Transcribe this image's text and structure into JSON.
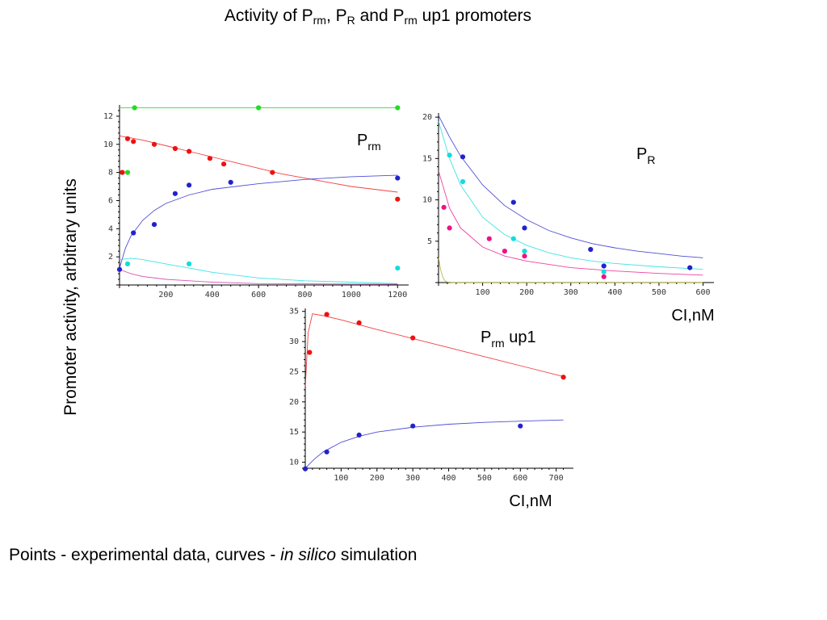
{
  "title": {
    "pre": "Activity of P",
    "sub1": "rm",
    "mid1": ", P",
    "sub2": "R",
    "mid2": " and P",
    "sub3": "rm",
    "post": " up1 promoters"
  },
  "y_caption": "Promoter activity, arbitrary units",
  "footer": {
    "part1": "Points -  experimental data, curves - ",
    "italic": "in silico",
    "part2": " simulation"
  },
  "x_unit_label": "CI,nM",
  "chart_data": [
    {
      "type": "scatter",
      "panel": "prm",
      "label": {
        "main": "P",
        "sub": "rm",
        "suffix": ""
      },
      "xlim": [
        0,
        1220
      ],
      "ylim": [
        0,
        12.8
      ],
      "xticks": [
        200,
        400,
        600,
        800,
        1000,
        1200
      ],
      "yticks": [
        2,
        4,
        6,
        8,
        10,
        12
      ],
      "show_xunit": false,
      "series": [
        {
          "color": "#22dd22",
          "points": [
            [
              12,
              8.0
            ],
            [
              35,
              8.0
            ],
            [
              65,
              12.6
            ],
            [
              600,
              12.6
            ],
            [
              1200,
              12.6
            ]
          ],
          "curve": [
            [
              0,
              12.6
            ],
            [
              200,
              12.6
            ],
            [
              400,
              12.6
            ],
            [
              600,
              12.6
            ],
            [
              800,
              12.6
            ],
            [
              1000,
              12.6
            ],
            [
              1200,
              12.6
            ]
          ]
        },
        {
          "color": "#ee1111",
          "points": [
            [
              12,
              8.0
            ],
            [
              35,
              10.4
            ],
            [
              60,
              10.2
            ],
            [
              150,
              10.0
            ],
            [
              240,
              9.7
            ],
            [
              300,
              9.5
            ],
            [
              390,
              9.0
            ],
            [
              450,
              8.6
            ],
            [
              660,
              8.0
            ],
            [
              1200,
              6.1
            ]
          ],
          "curve": [
            [
              0,
              10.6
            ],
            [
              100,
              10.3
            ],
            [
              200,
              9.9
            ],
            [
              300,
              9.5
            ],
            [
              400,
              9.1
            ],
            [
              500,
              8.7
            ],
            [
              600,
              8.3
            ],
            [
              700,
              7.9
            ],
            [
              800,
              7.6
            ],
            [
              900,
              7.3
            ],
            [
              1000,
              7.0
            ],
            [
              1100,
              6.8
            ],
            [
              1200,
              6.6
            ]
          ]
        },
        {
          "color": "#2222cc",
          "points": [
            [
              0,
              1.1
            ],
            [
              60,
              3.7
            ],
            [
              150,
              4.3
            ],
            [
              240,
              6.5
            ],
            [
              300,
              7.1
            ],
            [
              480,
              7.3
            ],
            [
              1200,
              7.6
            ]
          ],
          "curve": [
            [
              0,
              1.2
            ],
            [
              25,
              2.6
            ],
            [
              50,
              3.5
            ],
            [
              100,
              4.6
            ],
            [
              150,
              5.3
            ],
            [
              200,
              5.8
            ],
            [
              300,
              6.4
            ],
            [
              400,
              6.8
            ],
            [
              600,
              7.2
            ],
            [
              800,
              7.5
            ],
            [
              1000,
              7.7
            ],
            [
              1200,
              7.8
            ]
          ]
        },
        {
          "color": "#11dddd",
          "points": [
            [
              35,
              1.5
            ],
            [
              300,
              1.5
            ],
            [
              1200,
              1.2
            ]
          ],
          "curve": [
            [
              0,
              1.8
            ],
            [
              50,
              1.9
            ],
            [
              100,
              1.8
            ],
            [
              200,
              1.5
            ],
            [
              300,
              1.2
            ],
            [
              400,
              0.9
            ],
            [
              500,
              0.7
            ],
            [
              600,
              0.5
            ],
            [
              800,
              0.3
            ],
            [
              1000,
              0.2
            ],
            [
              1200,
              0.1
            ]
          ]
        },
        {
          "color": "#cc33aa",
          "points": [],
          "curve": [
            [
              0,
              1.1
            ],
            [
              50,
              0.8
            ],
            [
              100,
              0.6
            ],
            [
              200,
              0.4
            ],
            [
              400,
              0.2
            ],
            [
              600,
              0.1
            ],
            [
              1200,
              0.05
            ]
          ]
        }
      ]
    },
    {
      "type": "scatter",
      "panel": "pr",
      "label": {
        "main": "P",
        "sub": "R",
        "suffix": ""
      },
      "xlim": [
        0,
        610
      ],
      "ylim": [
        0,
        20.5
      ],
      "xticks": [
        100,
        200,
        300,
        400,
        500,
        600
      ],
      "yticks": [
        5,
        10,
        15,
        20
      ],
      "show_xunit": true,
      "series": [
        {
          "color": "#2222cc",
          "points": [
            [
              55,
              15.2
            ],
            [
              170,
              9.7
            ],
            [
              195,
              6.6
            ],
            [
              345,
              4.0
            ],
            [
              375,
              2.0
            ],
            [
              570,
              1.8
            ]
          ],
          "curve": [
            [
              0,
              20.2
            ],
            [
              25,
              17.6
            ],
            [
              50,
              15.3
            ],
            [
              100,
              11.8
            ],
            [
              150,
              9.3
            ],
            [
              200,
              7.6
            ],
            [
              250,
              6.3
            ],
            [
              300,
              5.4
            ],
            [
              350,
              4.7
            ],
            [
              400,
              4.2
            ],
            [
              450,
              3.8
            ],
            [
              500,
              3.5
            ],
            [
              550,
              3.2
            ],
            [
              600,
              3.0
            ]
          ]
        },
        {
          "color": "#11dddd",
          "points": [
            [
              25,
              15.4
            ],
            [
              55,
              12.2
            ],
            [
              170,
              5.3
            ],
            [
              195,
              3.8
            ],
            [
              375,
              1.3
            ]
          ],
          "curve": [
            [
              0,
              19.5
            ],
            [
              25,
              15.0
            ],
            [
              50,
              11.8
            ],
            [
              100,
              7.9
            ],
            [
              150,
              5.8
            ],
            [
              200,
              4.5
            ],
            [
              250,
              3.6
            ],
            [
              300,
              3.0
            ],
            [
              350,
              2.6
            ],
            [
              400,
              2.3
            ],
            [
              500,
              1.9
            ],
            [
              600,
              1.6
            ]
          ]
        },
        {
          "color": "#ee1188",
          "points": [
            [
              12,
              9.1
            ],
            [
              25,
              6.6
            ],
            [
              115,
              5.3
            ],
            [
              150,
              3.8
            ],
            [
              195,
              3.2
            ],
            [
              375,
              0.7
            ]
          ],
          "curve": [
            [
              0,
              13.5
            ],
            [
              25,
              9.0
            ],
            [
              50,
              6.6
            ],
            [
              100,
              4.3
            ],
            [
              150,
              3.2
            ],
            [
              200,
              2.6
            ],
            [
              300,
              1.8
            ],
            [
              400,
              1.4
            ],
            [
              500,
              1.1
            ],
            [
              600,
              0.9
            ]
          ]
        },
        {
          "color": "#aaaa22",
          "points": [],
          "curve": [
            [
              0,
              3.0
            ],
            [
              5,
              1.5
            ],
            [
              10,
              0.6
            ],
            [
              15,
              0.2
            ],
            [
              20,
              0.05
            ],
            [
              30,
              0.0
            ],
            [
              600,
              0.0
            ]
          ]
        }
      ]
    },
    {
      "type": "scatter",
      "panel": "prm-up1",
      "label": {
        "main": "P",
        "sub": "rm",
        "suffix": " up1"
      },
      "xlim": [
        0,
        730
      ],
      "ylim": [
        9,
        35.5
      ],
      "xticks": [
        100,
        200,
        300,
        400,
        500,
        600,
        700
      ],
      "yticks": [
        10,
        15,
        20,
        25,
        30,
        35
      ],
      "show_xunit": true,
      "series": [
        {
          "color": "#ee1111",
          "points": [
            [
              12,
              28.2
            ],
            [
              60,
              34.5
            ],
            [
              150,
              33.1
            ],
            [
              300,
              30.6
            ],
            [
              720,
              24.1
            ]
          ],
          "curve": [
            [
              0,
              22.5
            ],
            [
              8,
              31.5
            ],
            [
              20,
              34.6
            ],
            [
              50,
              34.3
            ],
            [
              100,
              33.6
            ],
            [
              200,
              32.0
            ],
            [
              300,
              30.5
            ],
            [
              400,
              29.0
            ],
            [
              500,
              27.5
            ],
            [
              600,
              26.0
            ],
            [
              720,
              24.2
            ]
          ]
        },
        {
          "color": "#2222cc",
          "points": [
            [
              0,
              8.9
            ],
            [
              60,
              11.7
            ],
            [
              150,
              14.5
            ],
            [
              300,
              16.0
            ],
            [
              600,
              16.0
            ]
          ],
          "curve": [
            [
              0,
              9.0
            ],
            [
              25,
              10.5
            ],
            [
              50,
              11.7
            ],
            [
              100,
              13.3
            ],
            [
              150,
              14.3
            ],
            [
              200,
              15.0
            ],
            [
              300,
              15.8
            ],
            [
              400,
              16.3
            ],
            [
              500,
              16.6
            ],
            [
              600,
              16.8
            ],
            [
              720,
              17.0
            ]
          ]
        }
      ]
    }
  ]
}
